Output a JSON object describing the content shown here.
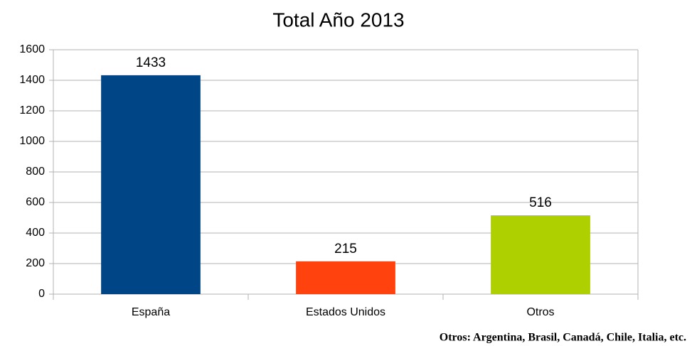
{
  "chart_data": {
    "type": "bar",
    "title": "Total Año 2013",
    "categories": [
      "España",
      "Estados Unidos",
      "Otros"
    ],
    "values": [
      1433,
      215,
      516
    ],
    "colors": [
      "#004586",
      "#ff420e",
      "#aecf00"
    ],
    "ylim": [
      0,
      1600
    ],
    "yticks": [
      0,
      200,
      400,
      600,
      800,
      1000,
      1200,
      1400,
      1600
    ],
    "grid": true,
    "annotation": "Otros: Argentina, Brasil, Canadá, Chile, Italia, etc."
  }
}
